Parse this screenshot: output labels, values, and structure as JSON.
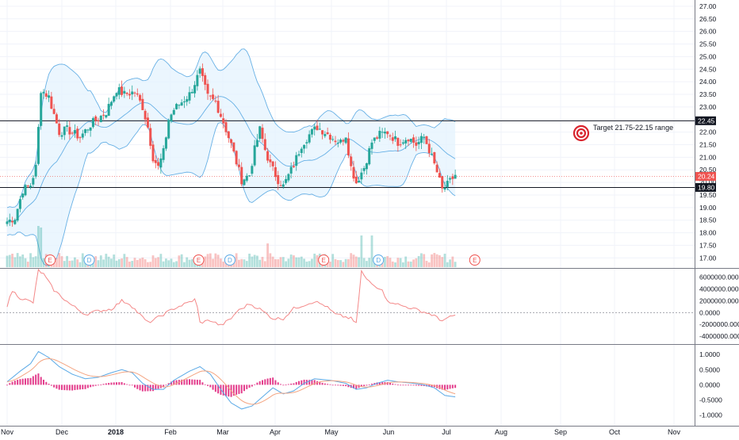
{
  "chart_data": {
    "type": "candlestick",
    "x_labels": [
      "Nov",
      "Dec",
      "2018",
      "Feb",
      "Mar",
      "Apr",
      "May",
      "Jun",
      "Jul",
      "Aug",
      "Sep",
      "Oct",
      "Nov"
    ],
    "price_ticks": [
      "27.00",
      "26.50",
      "26.00",
      "25.50",
      "25.00",
      "24.50",
      "24.00",
      "23.50",
      "23.00",
      "22.50",
      "22.00",
      "21.50",
      "21.00",
      "20.50",
      "20.00",
      "19.50",
      "19.00",
      "18.50",
      "18.00",
      "17.50",
      "17.00"
    ],
    "price_range": [
      16.6,
      27.25
    ],
    "level_high": "22.45",
    "level_low": "19.80",
    "last_price": "20.24",
    "annotation": "Target 21.75-22.15 range",
    "candles_per_month": 21,
    "waypoints": [
      [
        0,
        18.45
      ],
      [
        3,
        18.6
      ],
      [
        6,
        19.7
      ],
      [
        9,
        19.9
      ],
      [
        11,
        20.6
      ],
      [
        13,
        23.7
      ],
      [
        16,
        23.4
      ],
      [
        18,
        22.7
      ],
      [
        20,
        22.0
      ],
      [
        23,
        22.1
      ],
      [
        28,
        21.8
      ],
      [
        32,
        22.3
      ],
      [
        38,
        22.8
      ],
      [
        42,
        23.7
      ],
      [
        45,
        23.5
      ],
      [
        49,
        23.6
      ],
      [
        52,
        23.0
      ],
      [
        54,
        22.2
      ],
      [
        56,
        21.0
      ],
      [
        58,
        20.6
      ],
      [
        60,
        21.2
      ],
      [
        62,
        22.5
      ],
      [
        64,
        22.9
      ],
      [
        70,
        23.5
      ],
      [
        74,
        24.4
      ],
      [
        77,
        23.4
      ],
      [
        80,
        23.2
      ],
      [
        83,
        22.4
      ],
      [
        86,
        21.5
      ],
      [
        88,
        20.8
      ],
      [
        90,
        20.1
      ],
      [
        93,
        20.3
      ],
      [
        95,
        21.3
      ],
      [
        97,
        22.1
      ],
      [
        99,
        21.3
      ],
      [
        101,
        20.7
      ],
      [
        104,
        20.1
      ],
      [
        106,
        19.85
      ],
      [
        110,
        20.7
      ],
      [
        113,
        21.5
      ],
      [
        116,
        21.9
      ],
      [
        119,
        22.2
      ],
      [
        122,
        22.0
      ],
      [
        126,
        21.7
      ],
      [
        128,
        21.6
      ],
      [
        130,
        21.9
      ],
      [
        132,
        20.6
      ],
      [
        134,
        20.0
      ],
      [
        137,
        20.6
      ],
      [
        140,
        21.6
      ],
      [
        143,
        21.9
      ],
      [
        146,
        22.0
      ],
      [
        150,
        21.6
      ],
      [
        154,
        21.8
      ],
      [
        157,
        21.5
      ],
      [
        160,
        21.8
      ],
      [
        162,
        21.3
      ],
      [
        165,
        20.4
      ],
      [
        167,
        19.7
      ],
      [
        169,
        19.9
      ],
      [
        172,
        20.3
      ]
    ],
    "volume_ticks": [],
    "events": [
      {
        "label": "E",
        "x": 16.5,
        "type": "earnings"
      },
      {
        "label": "D",
        "x": 31.5,
        "type": "dividend"
      },
      {
        "label": "E",
        "x": 73.5,
        "type": "earnings"
      },
      {
        "label": "D",
        "x": 85.5,
        "type": "dividend"
      },
      {
        "label": "E",
        "x": 121.5,
        "type": "earnings"
      },
      {
        "label": "D",
        "x": 142.5,
        "type": "dividend"
      },
      {
        "label": "E",
        "x": 179.5,
        "type": "earnings"
      }
    ],
    "indicator1": {
      "ticks": [
        "6000000.0000",
        "4000000.0000",
        "2000000.0000",
        "0.0000",
        "-2000000.0000",
        "-4000000.0000"
      ],
      "range": [
        -5200000,
        7300000
      ],
      "waypoints": [
        [
          0,
          1200000
        ],
        [
          2,
          3700000
        ],
        [
          5,
          2500000
        ],
        [
          10,
          1700000
        ],
        [
          12,
          7200000
        ],
        [
          14,
          6500000
        ],
        [
          18,
          3800000
        ],
        [
          24,
          1500000
        ],
        [
          30,
          -300000
        ],
        [
          34,
          200000
        ],
        [
          40,
          600000
        ],
        [
          44,
          2000000
        ],
        [
          47,
          1500000
        ],
        [
          50,
          100000
        ],
        [
          54,
          -1700000
        ],
        [
          56,
          -1300000
        ],
        [
          60,
          -300000
        ],
        [
          64,
          700000
        ],
        [
          69,
          1600000
        ],
        [
          72,
          2200000
        ],
        [
          73,
          900000
        ],
        [
          74,
          -1700000
        ],
        [
          78,
          -1300000
        ],
        [
          82,
          -2200000
        ],
        [
          86,
          -1000000
        ],
        [
          88,
          100000
        ],
        [
          93,
          1500000
        ],
        [
          97,
          600000
        ],
        [
          102,
          -1000000
        ],
        [
          106,
          -1000000
        ],
        [
          110,
          700000
        ],
        [
          118,
          1900000
        ],
        [
          122,
          1200000
        ],
        [
          126,
          -300000
        ],
        [
          132,
          -1000000
        ],
        [
          134,
          -1900000
        ],
        [
          136,
          7000000
        ],
        [
          138,
          5600000
        ],
        [
          141,
          4500000
        ],
        [
          144,
          4000000
        ],
        [
          146,
          1800000
        ],
        [
          148,
          1800000
        ],
        [
          151,
          1200000
        ],
        [
          155,
          800000
        ],
        [
          160,
          100000
        ],
        [
          164,
          -500000
        ],
        [
          166,
          -1300000
        ],
        [
          169,
          -1000000
        ],
        [
          172,
          -400000
        ]
      ]
    },
    "indicator2": {
      "ticks": [
        "1.0000",
        "0.5000",
        "0.0000",
        "-0.5000",
        "-1.0000"
      ],
      "range": [
        -1.3,
        1.32
      ],
      "macd_waypoints": [
        [
          0,
          0.1
        ],
        [
          5,
          0.45
        ],
        [
          9,
          0.7
        ],
        [
          12,
          1.1
        ],
        [
          16,
          0.9
        ],
        [
          20,
          0.6
        ],
        [
          25,
          0.35
        ],
        [
          30,
          0.2
        ],
        [
          35,
          0.25
        ],
        [
          40,
          0.4
        ],
        [
          44,
          0.5
        ],
        [
          48,
          0.4
        ],
        [
          52,
          0.05
        ],
        [
          56,
          -0.15
        ],
        [
          60,
          -0.15
        ],
        [
          64,
          0.15
        ],
        [
          70,
          0.45
        ],
        [
          74,
          0.6
        ],
        [
          78,
          0.35
        ],
        [
          82,
          -0.15
        ],
        [
          86,
          -0.6
        ],
        [
          90,
          -0.8
        ],
        [
          94,
          -0.7
        ],
        [
          98,
          -0.4
        ],
        [
          102,
          -0.1
        ],
        [
          106,
          -0.3
        ],
        [
          110,
          -0.2
        ],
        [
          114,
          0.05
        ],
        [
          118,
          0.2
        ],
        [
          124,
          0.15
        ],
        [
          130,
          0.05
        ],
        [
          134,
          -0.15
        ],
        [
          138,
          -0.1
        ],
        [
          142,
          0.05
        ],
        [
          146,
          0.15
        ],
        [
          150,
          0.1
        ],
        [
          156,
          0.05
        ],
        [
          160,
          0.0
        ],
        [
          164,
          -0.1
        ],
        [
          168,
          -0.35
        ],
        [
          172,
          -0.4
        ]
      ],
      "signal_period": 9
    },
    "colors": {
      "up": "#26a69a",
      "down": "#ef5350",
      "band": "#4fa3e0",
      "band_fill": "#e3f2fd",
      "macd": "#5aa9e6",
      "signal": "#f4a582",
      "obv": "#f48888",
      "hist": "#e33d8c",
      "target": "#d9252e",
      "level_label_bg": "#131722"
    }
  }
}
